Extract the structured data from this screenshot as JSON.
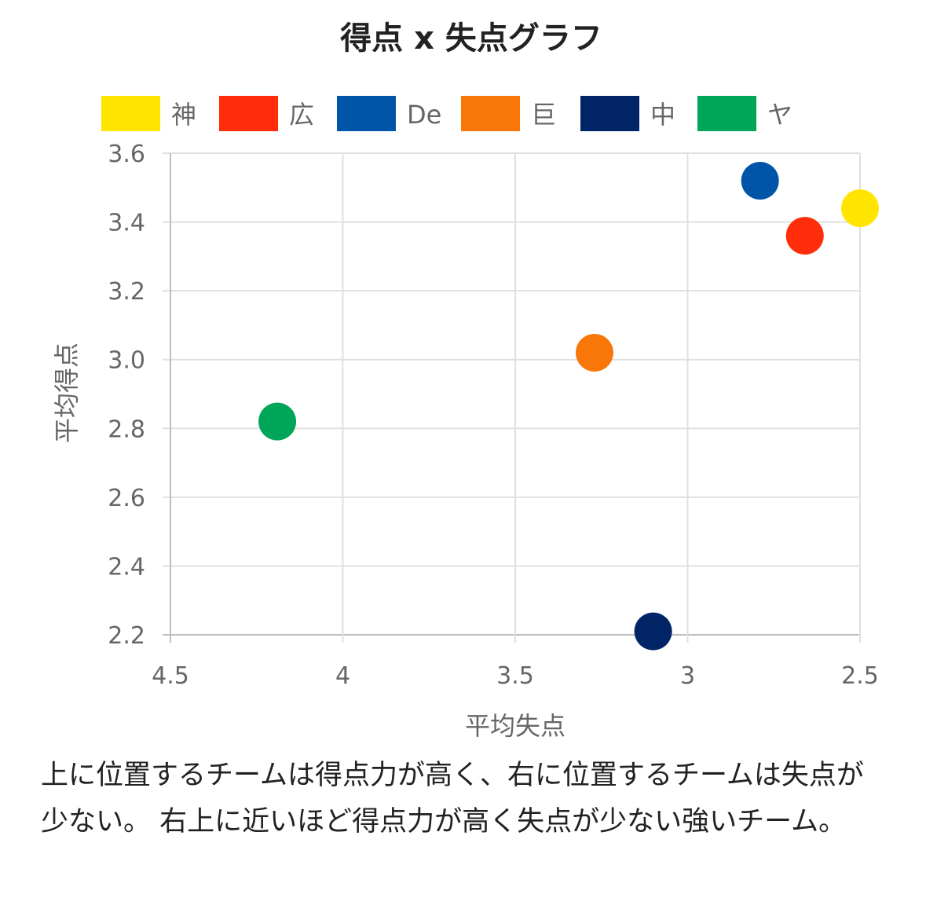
{
  "chart_data": {
    "type": "scatter",
    "title": "得点 x 失点グラフ",
    "xlabel": "平均失点",
    "ylabel": "平均得点",
    "x_reversed": true,
    "xlim": [
      4.5,
      2.5
    ],
    "ylim": [
      2.2,
      3.6
    ],
    "x_ticks": [
      "4.5",
      "4",
      "3.5",
      "3",
      "2.5"
    ],
    "y_ticks": [
      "3.6",
      "3.4",
      "3.2",
      "3.0",
      "2.8",
      "2.6",
      "2.4",
      "2.2"
    ],
    "grid": true,
    "legend_position": "top",
    "series": [
      {
        "name": "神",
        "color": "#FFE500",
        "x": 2.5,
        "y": 3.44
      },
      {
        "name": "広",
        "color": "#FF2D0A",
        "x": 2.66,
        "y": 3.36
      },
      {
        "name": "De",
        "color": "#0055A8",
        "x": 2.79,
        "y": 3.52
      },
      {
        "name": "巨",
        "color": "#F97709",
        "x": 3.27,
        "y": 3.02
      },
      {
        "name": "中",
        "color": "#002466",
        "x": 3.1,
        "y": 2.21
      },
      {
        "name": "ヤ",
        "color": "#00A658",
        "x": 4.19,
        "y": 2.82
      }
    ]
  },
  "caption": "上に位置するチームは得点力が高く、右に位置するチームは失点が少ない。 右上に近いほど得点力が高く失点が少ない強いチーム。"
}
